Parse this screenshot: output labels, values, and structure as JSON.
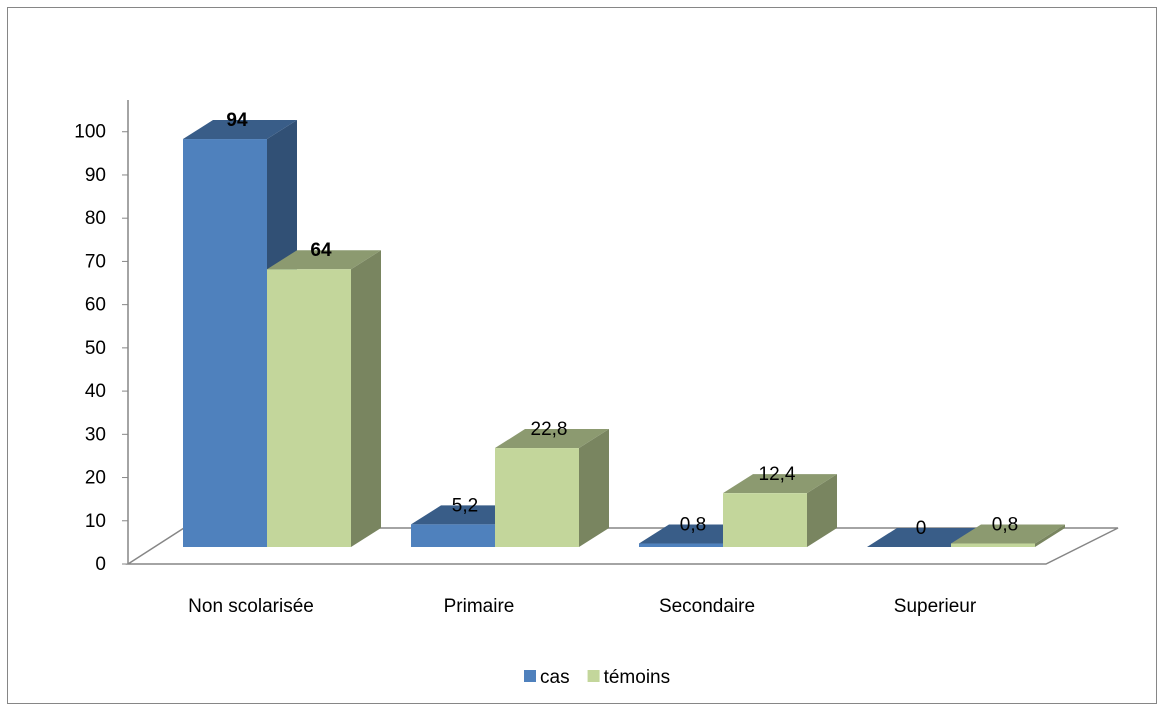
{
  "chart_data": {
    "type": "bar",
    "categories": [
      "Non scolarisée",
      "Primaire",
      "Secondaire",
      "Superieur"
    ],
    "series": [
      {
        "name": "cas",
        "values": [
          94,
          5.2,
          0.8,
          0
        ],
        "labels": [
          "94",
          "5,2",
          "0,8",
          "0"
        ],
        "color": "#4f81bd",
        "label_bold": [
          true,
          false,
          false,
          false
        ]
      },
      {
        "name": "témoins",
        "values": [
          64,
          22.8,
          12.4,
          0.8
        ],
        "labels": [
          "64",
          "22,8",
          "12,4",
          "0,8"
        ],
        "color": "#c3d69b",
        "label_bold": [
          true,
          false,
          false,
          false
        ]
      }
    ],
    "title": "",
    "xlabel": "",
    "ylabel": "",
    "ylim": [
      0,
      100
    ],
    "yticks": [
      0,
      10,
      20,
      30,
      40,
      50,
      60,
      70,
      80,
      90,
      100
    ],
    "grid": false,
    "legend": "bottom",
    "style": "3d-clustered-column"
  }
}
